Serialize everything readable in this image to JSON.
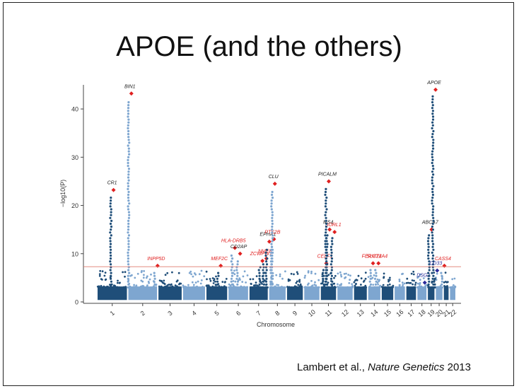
{
  "slide": {
    "title": "APOE (and the others)",
    "citation_authors": "Lambert et al., ",
    "citation_journal": "Nature Genetics",
    "citation_year": " 2013"
  },
  "chart_data": {
    "type": "scatter",
    "subtype": "manhattan",
    "xlabel": "Chromosome",
    "ylabel": "−log10(P)",
    "ylim": [
      0,
      45
    ],
    "yticks": [
      0,
      10,
      20,
      30,
      40
    ],
    "significance_threshold": 7.3,
    "chromosomes": [
      "1",
      "2",
      "3",
      "4",
      "5",
      "6",
      "7",
      "8",
      "9",
      "10",
      "11",
      "12",
      "13",
      "14",
      "15",
      "16",
      "17",
      "18",
      "19",
      "20",
      "21",
      "22"
    ],
    "colors": {
      "dark": "#1f4e79",
      "light": "#7ea6d0",
      "threshold": "#e07b6f",
      "known_hit": "#222222",
      "new_hit": "#e02020",
      "blue_hit": "#2a2a9a"
    },
    "loci": [
      {
        "gene": "BIN1",
        "chr": "2",
        "y": 43.2,
        "label_color": "known_hit"
      },
      {
        "gene": "CR1",
        "chr": "1",
        "y": 23.2,
        "label_color": "known_hit"
      },
      {
        "gene": "INPP5D",
        "chr": "2",
        "y": 7.5,
        "label_color": "new_hit"
      },
      {
        "gene": "MEF2C",
        "chr": "5",
        "y": 7.5,
        "label_color": "new_hit"
      },
      {
        "gene": "HLA-DRB5",
        "chr": "6",
        "y": 11.2,
        "label_color": "new_hit"
      },
      {
        "gene": "CD2AP",
        "chr": "6",
        "y": 10.0,
        "label_color": "known_hit"
      },
      {
        "gene": "ZCWPW1",
        "chr": "7",
        "y": 8.5,
        "label_color": "new_hit"
      },
      {
        "gene": "NME8",
        "chr": "7",
        "y": 9.0,
        "label_color": "new_hit"
      },
      {
        "gene": "EPHA1",
        "chr": "7",
        "y": 12.5,
        "label_color": "known_hit"
      },
      {
        "gene": "PTK2B",
        "chr": "8",
        "y": 13.0,
        "label_color": "new_hit"
      },
      {
        "gene": "CLU",
        "chr": "8",
        "y": 24.5,
        "label_color": "known_hit"
      },
      {
        "gene": "CELF1",
        "chr": "11",
        "y": 8.0,
        "label_color": "new_hit"
      },
      {
        "gene": "MS4",
        "chr": "11",
        "y": 15.0,
        "label_color": "known_hit"
      },
      {
        "gene": "SORL1",
        "chr": "11",
        "y": 14.5,
        "label_color": "new_hit"
      },
      {
        "gene": "PICALM",
        "chr": "11",
        "y": 25.0,
        "label_color": "known_hit"
      },
      {
        "gene": "FERMT2",
        "chr": "14",
        "y": 8.0,
        "label_color": "new_hit"
      },
      {
        "gene": "SLC24A4",
        "chr": "14",
        "y": 8.0,
        "label_color": "new_hit"
      },
      {
        "gene": "DSG2",
        "chr": "18",
        "y": 4.0,
        "label_color": "blue_hit"
      },
      {
        "gene": "ABCA7",
        "chr": "19",
        "y": 15.0,
        "label_color": "known_hit"
      },
      {
        "gene": "APOE",
        "chr": "19",
        "y": 44.0,
        "label_color": "known_hit"
      },
      {
        "gene": "CD33",
        "chr": "19",
        "y": 6.5,
        "label_color": "blue_hit"
      },
      {
        "gene": "CASS4",
        "chr": "20",
        "y": 7.5,
        "label_color": "new_hit"
      }
    ]
  }
}
